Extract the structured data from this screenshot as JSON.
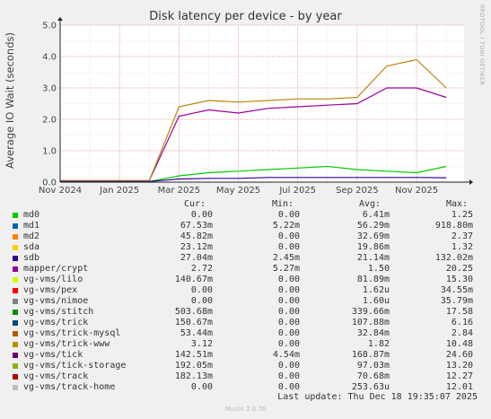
{
  "chart_data": {
    "type": "line",
    "title": "Disk latency per device - by year",
    "ylabel": "Average IO Wait (seconds)",
    "xlabel": "",
    "ylim": [
      0,
      5
    ],
    "yticks": [
      "0.0",
      "1.0",
      "2.0",
      "3.0",
      "4.0",
      "5.0"
    ],
    "xticks": [
      "Nov 2024",
      "Jan 2025",
      "Mar 2025",
      "May 2025",
      "Jul 2025",
      "Sep 2025",
      "Nov 2025"
    ],
    "grid": true,
    "series": [
      {
        "name": "mapper/crypt",
        "color": "#990099",
        "x": [
          "Nov 2024",
          "Jan 2025",
          "Feb 2025",
          "Mar 2025",
          "Apr 2025",
          "May 2025",
          "Jun 2025",
          "Jul 2025",
          "Aug 2025",
          "Sep 2025",
          "Oct 2025",
          "Nov 2025",
          "Dec 2025"
        ],
        "values": [
          0.05,
          0.05,
          0.05,
          2.1,
          2.3,
          2.2,
          2.35,
          2.4,
          2.45,
          2.5,
          3.0,
          3.0,
          2.7
        ]
      },
      {
        "name": "vg-vms/trick-www",
        "color": "#b8860b",
        "x": [
          "Nov 2024",
          "Jan 2025",
          "Feb 2025",
          "Mar 2025",
          "Apr 2025",
          "May 2025",
          "Jun 2025",
          "Jul 2025",
          "Aug 2025",
          "Sep 2025",
          "Oct 2025",
          "Nov 2025",
          "Dec 2025"
        ],
        "values": [
          0.05,
          0.05,
          0.05,
          2.4,
          2.6,
          2.55,
          2.6,
          2.65,
          2.65,
          2.7,
          3.7,
          3.9,
          3.0
        ]
      },
      {
        "name": "vg-vms/stitch",
        "color": "#00cc00",
        "x": [
          "Nov 2024",
          "Jan 2025",
          "Feb 2025",
          "Mar 2025",
          "Apr 2025",
          "May 2025",
          "Jun 2025",
          "Jul 2025",
          "Aug 2025",
          "Sep 2025",
          "Oct 2025",
          "Nov 2025",
          "Dec 2025"
        ],
        "values": [
          0.02,
          0.02,
          0.02,
          0.2,
          0.3,
          0.35,
          0.4,
          0.45,
          0.5,
          0.4,
          0.35,
          0.3,
          0.5
        ]
      },
      {
        "name": "vg-vms/tick",
        "color": "#330099",
        "x": [
          "Nov 2024",
          "Jan 2025",
          "Feb 2025",
          "Mar 2025",
          "Apr 2025",
          "May 2025",
          "Jun 2025",
          "Jul 2025",
          "Aug 2025",
          "Sep 2025",
          "Oct 2025",
          "Nov 2025",
          "Dec 2025"
        ],
        "values": [
          0.02,
          0.02,
          0.02,
          0.1,
          0.12,
          0.12,
          0.15,
          0.15,
          0.15,
          0.15,
          0.15,
          0.15,
          0.14
        ]
      }
    ]
  },
  "legend_headers": {
    "cur": "Cur:",
    "min": "Min:",
    "avg": "Avg:",
    "max": "Max:"
  },
  "legend": [
    {
      "name": "md0",
      "color": "#00cc00",
      "cur": "0.00",
      "min": "0.00",
      "avg": "6.41m",
      "max": "1.25"
    },
    {
      "name": "md1",
      "color": "#0066b3",
      "cur": "67.53m",
      "min": "5.22m",
      "avg": "56.29m",
      "max": "918.80m"
    },
    {
      "name": "md2",
      "color": "#ff8000",
      "cur": "45.82m",
      "min": "0.00",
      "avg": "32.69m",
      "max": "2.37"
    },
    {
      "name": "sda",
      "color": "#ffcc00",
      "cur": "23.12m",
      "min": "0.00",
      "avg": "19.86m",
      "max": "1.32"
    },
    {
      "name": "sdb",
      "color": "#330099",
      "cur": "27.04m",
      "min": "2.45m",
      "avg": "21.14m",
      "max": "132.02m"
    },
    {
      "name": "mapper/crypt",
      "color": "#990099",
      "cur": "2.72",
      "min": "5.27m",
      "avg": "1.50",
      "max": "20.25"
    },
    {
      "name": "vg-vms/lilo",
      "color": "#ccff00",
      "cur": "140.67m",
      "min": "0.00",
      "avg": "81.89m",
      "max": "15.30"
    },
    {
      "name": "vg-vms/pex",
      "color": "#ff0000",
      "cur": "0.00",
      "min": "0.00",
      "avg": "1.62u",
      "max": "34.55m"
    },
    {
      "name": "vg-vms/nimoe",
      "color": "#808080",
      "cur": "0.00",
      "min": "0.00",
      "avg": "1.60u",
      "max": "35.79m"
    },
    {
      "name": "vg-vms/stitch",
      "color": "#008f00",
      "cur": "503.68m",
      "min": "0.00",
      "avg": "339.66m",
      "max": "17.58"
    },
    {
      "name": "vg-vms/trick",
      "color": "#00487d",
      "cur": "150.67m",
      "min": "0.00",
      "avg": "107.88m",
      "max": "6.16"
    },
    {
      "name": "vg-vms/trick-mysql",
      "color": "#b35a00",
      "cur": "53.44m",
      "min": "0.00",
      "avg": "32.84m",
      "max": "2.84"
    },
    {
      "name": "vg-vms/trick-www",
      "color": "#b38f00",
      "cur": "3.12",
      "min": "0.00",
      "avg": "1.82",
      "max": "10.48"
    },
    {
      "name": "vg-vms/tick",
      "color": "#6b006b",
      "cur": "142.51m",
      "min": "4.54m",
      "avg": "168.87m",
      "max": "24.60"
    },
    {
      "name": "vg-vms/tick-storage",
      "color": "#8fb300",
      "cur": "192.05m",
      "min": "0.00",
      "avg": "97.03m",
      "max": "13.20"
    },
    {
      "name": "vg-vms/track",
      "color": "#b30000",
      "cur": "182.13m",
      "min": "0.00",
      "avg": "70.68m",
      "max": "12.27"
    },
    {
      "name": "vg-vms/track-home",
      "color": "#bebebe",
      "cur": "0.00",
      "min": "0.00",
      "avg": "253.63u",
      "max": "12.01"
    }
  ],
  "last_update": "Last update: Thu Dec 18 19:35:07 2025",
  "side_text": "RRDTOOL / TOBI OETIKER",
  "footer": "Munin 2.0.76"
}
